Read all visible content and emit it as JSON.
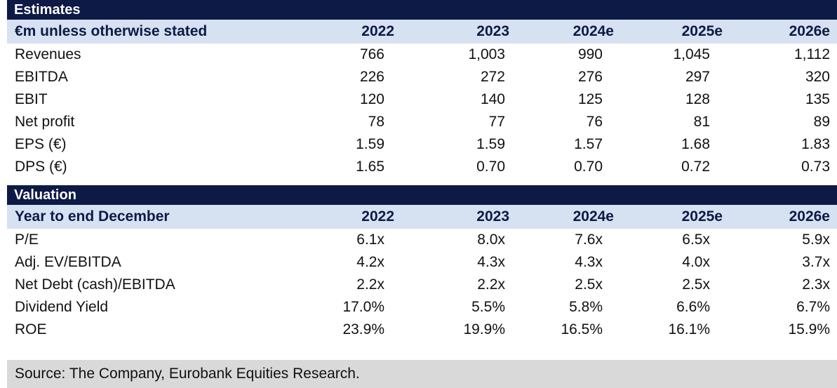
{
  "estimates": {
    "title": "Estimates",
    "header": {
      "label": "€m unless otherwise stated",
      "years": [
        "2022",
        "2023",
        "2024e",
        "2025e",
        "2026e"
      ]
    },
    "rows": [
      {
        "label": "Revenues",
        "values": [
          "766",
          "1,003",
          "990",
          "1,045",
          "1,112"
        ]
      },
      {
        "label": "EBITDA",
        "values": [
          "226",
          "272",
          "276",
          "297",
          "320"
        ]
      },
      {
        "label": "EBIT",
        "values": [
          "120",
          "140",
          "125",
          "128",
          "135"
        ]
      },
      {
        "label": "Net profit",
        "values": [
          "78",
          "77",
          "76",
          "81",
          "89"
        ]
      },
      {
        "label": "EPS (€)",
        "values": [
          "1.59",
          "1.59",
          "1.57",
          "1.68",
          "1.83"
        ]
      },
      {
        "label": "DPS (€)",
        "values": [
          "1.65",
          "0.70",
          "0.70",
          "0.72",
          "0.73"
        ]
      }
    ]
  },
  "valuation": {
    "title": "Valuation",
    "header": {
      "label": "Year to end December",
      "years": [
        "2022",
        "2023",
        "2024e",
        "2025e",
        "2026e"
      ]
    },
    "rows": [
      {
        "label": "P/E",
        "values": [
          "6.1x",
          "8.0x",
          "7.6x",
          "6.5x",
          "5.9x"
        ]
      },
      {
        "label": "Adj. EV/EBITDA",
        "values": [
          "4.2x",
          "4.3x",
          "4.3x",
          "4.0x",
          "3.7x"
        ]
      },
      {
        "label": "Net Debt (cash)/EBITDA",
        "values": [
          "2.2x",
          "2.2x",
          "2.5x",
          "2.5x",
          "2.3x"
        ]
      },
      {
        "label": "Dividend Yield",
        "values": [
          "17.0%",
          "5.5%",
          "5.8%",
          "6.6%",
          "6.7%"
        ]
      },
      {
        "label": "ROE",
        "values": [
          "23.9%",
          "19.9%",
          "16.5%",
          "16.1%",
          "15.9%"
        ]
      }
    ]
  },
  "source": "Source: The Company, Eurobank Equities Research.",
  "colors": {
    "band": "#0d1a45",
    "header_bg": "#d6e1f2",
    "source_bg": "#d9d9d9"
  }
}
